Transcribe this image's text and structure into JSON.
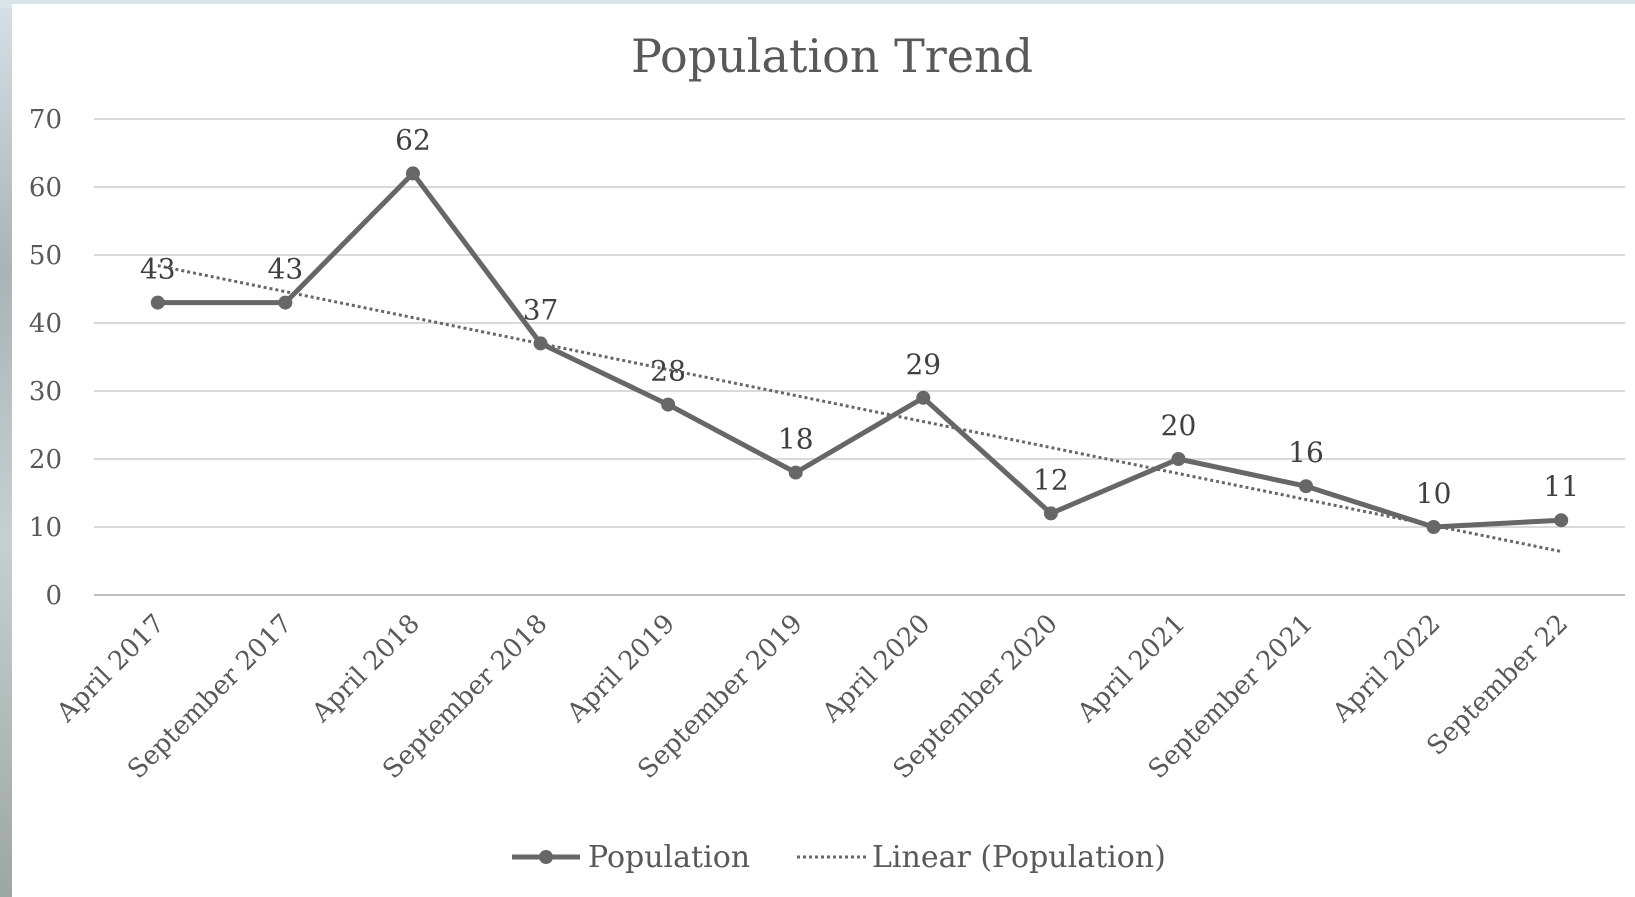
{
  "chart_data": {
    "type": "line",
    "title": "Population Trend",
    "categories": [
      "April 2017",
      "September 2017",
      "April 2018",
      "September 2018",
      "April 2019",
      "September 2019",
      "April 2020",
      "September 2020",
      "April 2021",
      "September 2021",
      "April 2022",
      "September 22"
    ],
    "series": [
      {
        "name": "Population",
        "values": [
          43,
          43,
          62,
          37,
          28,
          18,
          29,
          12,
          20,
          16,
          10,
          11
        ],
        "color": "#676767"
      }
    ],
    "trendline": {
      "name": "Linear (Population)",
      "type": "linear",
      "color": "#676767",
      "style": "dotted"
    },
    "data_labels": true,
    "ylim": [
      0,
      70
    ],
    "yticks": [
      0,
      10,
      20,
      30,
      40,
      50,
      60,
      70
    ],
    "grid": true,
    "legend_position": "bottom"
  }
}
